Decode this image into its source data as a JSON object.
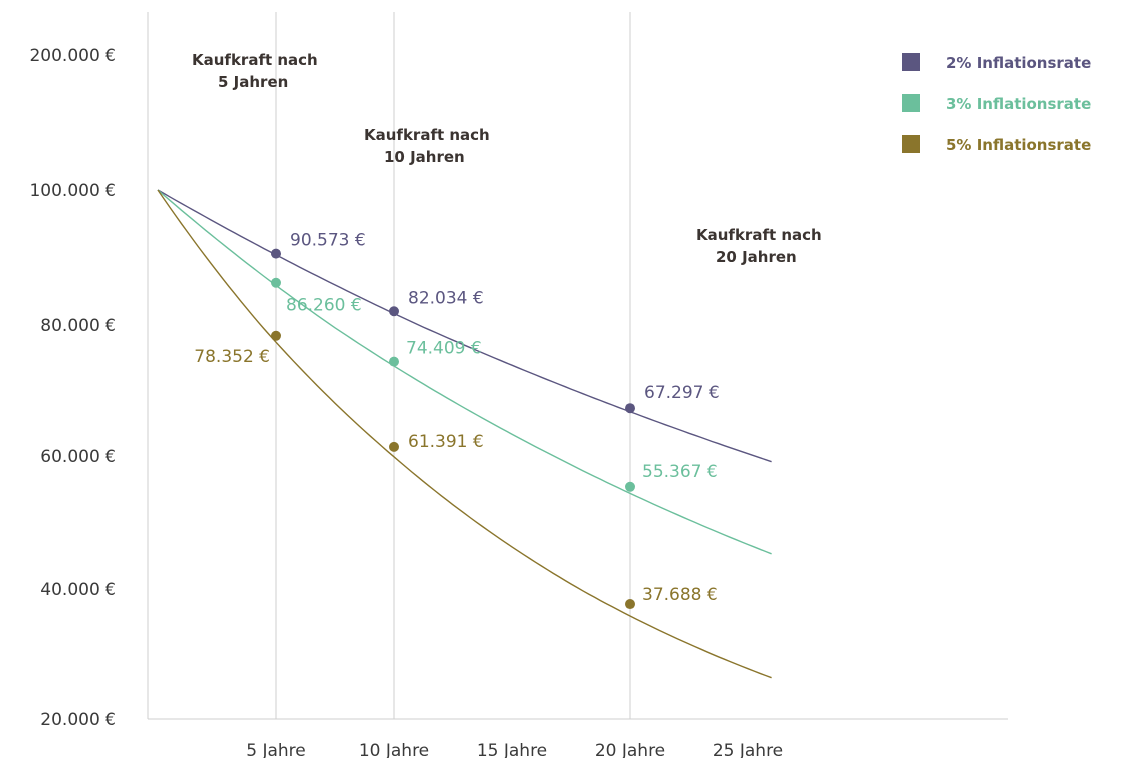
{
  "chart_data": {
    "type": "line",
    "title": "",
    "xlabel": "",
    "ylabel": "",
    "x_ticks": [
      {
        "x": 5,
        "label": "5 Jahre"
      },
      {
        "x": 10,
        "label": "10 Jahre"
      },
      {
        "x": 15,
        "label": "15 Jahre"
      },
      {
        "x": 20,
        "label": "20 Jahre"
      },
      {
        "x": 25,
        "label": "25 Jahre"
      }
    ],
    "y_ticks": [
      {
        "y": 200000,
        "label": "200.000 €"
      },
      {
        "y": 100000,
        "label": "100.000 €"
      },
      {
        "y": 80000,
        "label": "80.000 €"
      },
      {
        "y": 60000,
        "label": "60.000 €"
      },
      {
        "y": 40000,
        "label": "40.000 €"
      },
      {
        "y": 20000,
        "label": "20.000 €"
      }
    ],
    "xlim": [
      0,
      26
    ],
    "start_value": 100000,
    "series": [
      {
        "name": "2% Inflationsrate",
        "rate": 0.02,
        "color": "#5b5680",
        "points": [
          {
            "x": 5,
            "y": 90573,
            "label": "90.573 €"
          },
          {
            "x": 10,
            "y": 82034,
            "label": "82.034 €"
          },
          {
            "x": 20,
            "y": 67297,
            "label": "67.297 €"
          }
        ]
      },
      {
        "name": "3% Inflationsrate",
        "rate": 0.03,
        "color": "#6bbf9c",
        "points": [
          {
            "x": 5,
            "y": 86260,
            "label": "86.260 €"
          },
          {
            "x": 10,
            "y": 74409,
            "label": "74.409 €"
          },
          {
            "x": 20,
            "y": 55367,
            "label": "55.367 €"
          }
        ]
      },
      {
        "name": "5% Inflationsrate",
        "rate": 0.05,
        "color": "#8a752c",
        "points": [
          {
            "x": 5,
            "y": 78352,
            "label": "78.352 €"
          },
          {
            "x": 10,
            "y": 61391,
            "label": "61.391 €"
          },
          {
            "x": 20,
            "y": 37688,
            "label": "37.688 €"
          }
        ]
      }
    ],
    "annotations": [
      {
        "x": 5,
        "lines": [
          "Kaufkraft nach",
          "5 Jahren"
        ]
      },
      {
        "x": 10,
        "lines": [
          "Kaufkraft nach",
          "10 Jahren"
        ]
      },
      {
        "x": 20,
        "lines": [
          "Kaufkraft nach",
          "20 Jahren"
        ]
      }
    ],
    "legend_position": "top-right",
    "grid": "vertical lines at 5, 10 and 20 years"
  }
}
